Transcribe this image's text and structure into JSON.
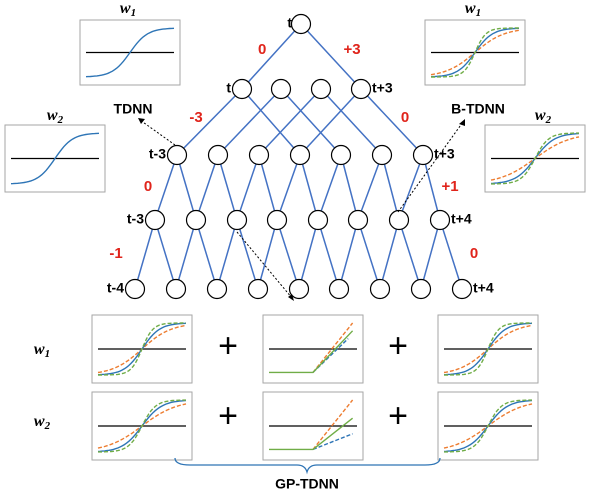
{
  "network": {
    "top_node": "t",
    "layer1_left": "t",
    "layer1_right": "t+3",
    "layer2_left": "t-3",
    "layer2_right": "t+3",
    "layer3_left": "t-3",
    "layer3_right": "t+4",
    "layer4_left": "t-4",
    "layer4_right": "t+4",
    "offsets": {
      "top_left": "0",
      "top_right": "+3",
      "l1_left": "-3",
      "l1_right": "0",
      "l2_left": "0",
      "l2_right": "+1",
      "l3_left": "-1",
      "l3_right": "0"
    },
    "tdnn": "TDNN",
    "b_tdnn": "B-TDNN",
    "gp_tdnn": "GP-TDNN"
  },
  "weights": {
    "w1": "w",
    "w1_sub": "1",
    "w2": "w",
    "w2_sub": "2"
  },
  "operators": {
    "plus": "+"
  }
}
